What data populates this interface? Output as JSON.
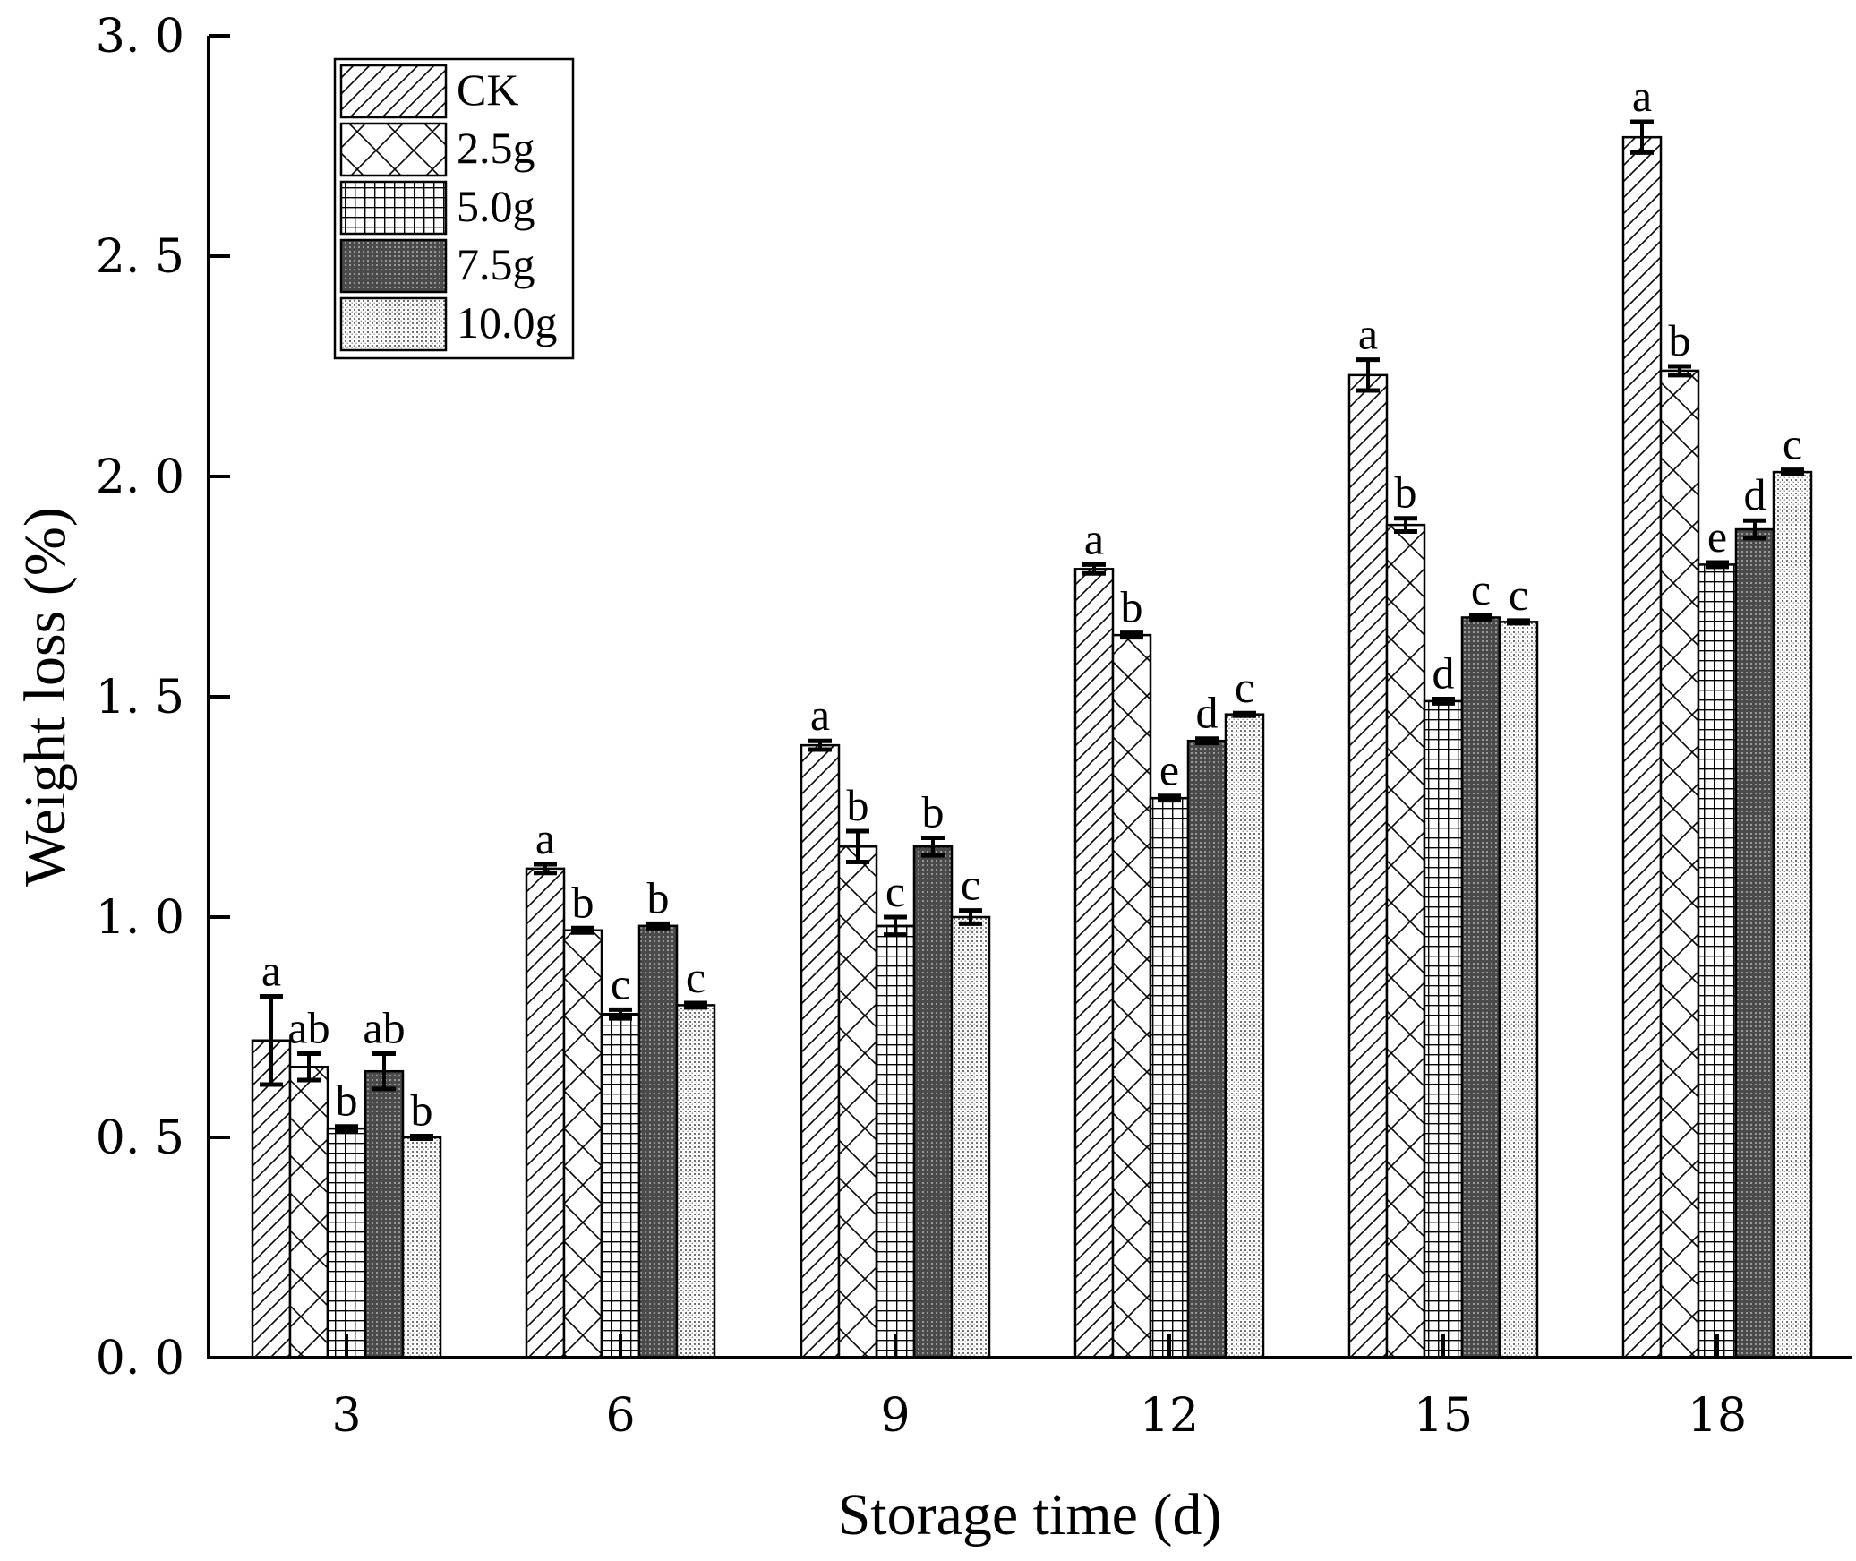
{
  "chart_data": {
    "type": "bar",
    "title": "",
    "xlabel": "Storage time (d)",
    "ylabel": "Weight loss (%)",
    "ylim": [
      0,
      3.0
    ],
    "yticks": [
      "0. 0",
      "0. 5",
      "1. 0",
      "1. 5",
      "2. 0",
      "2. 5",
      "3. 0"
    ],
    "ytick_values": [
      0,
      0.5,
      1.0,
      1.5,
      2.0,
      2.5,
      3.0
    ],
    "categories": [
      "3",
      "6",
      "9",
      "12",
      "15",
      "18"
    ],
    "legend_position": "top-left",
    "series": [
      {
        "name": "CK",
        "pattern": "hatch-diagonal",
        "values": [
          0.72,
          1.11,
          1.39,
          1.79,
          2.23,
          2.77
        ],
        "errors": [
          0.1,
          0.01,
          0.01,
          0.01,
          0.035,
          0.035
        ],
        "labels": [
          "a",
          "a",
          "a",
          "a",
          "a",
          "a"
        ]
      },
      {
        "name": "2.5g",
        "pattern": "cross-hatch",
        "values": [
          0.66,
          0.97,
          1.16,
          1.64,
          1.89,
          2.24
        ],
        "errors": [
          0.03,
          0.005,
          0.035,
          0.005,
          0.015,
          0.01
        ],
        "labels": [
          "ab",
          "b",
          "b",
          "b",
          "b",
          "b"
        ]
      },
      {
        "name": "5.0g",
        "pattern": "grid",
        "values": [
          0.52,
          0.78,
          0.98,
          1.27,
          1.49,
          1.8
        ],
        "errors": [
          0.005,
          0.01,
          0.02,
          0.005,
          0.005,
          0.005
        ],
        "labels": [
          "b",
          "c",
          "c",
          "e",
          "d",
          "e"
        ]
      },
      {
        "name": "7.5g",
        "pattern": "dark-dots",
        "values": [
          0.65,
          0.98,
          1.16,
          1.4,
          1.68,
          1.88
        ],
        "errors": [
          0.04,
          0.005,
          0.02,
          0.005,
          0.005,
          0.02
        ],
        "labels": [
          "ab",
          "b",
          "b",
          "d",
          "c",
          "d"
        ]
      },
      {
        "name": "10.0g",
        "pattern": "light-dots",
        "values": [
          0.5,
          0.8,
          1.0,
          1.46,
          1.67,
          2.01
        ],
        "errors": [
          0.003,
          0.005,
          0.015,
          0.003,
          0.003,
          0.005
        ],
        "labels": [
          "b",
          "c",
          "c",
          "c",
          "c",
          "c"
        ]
      }
    ]
  }
}
